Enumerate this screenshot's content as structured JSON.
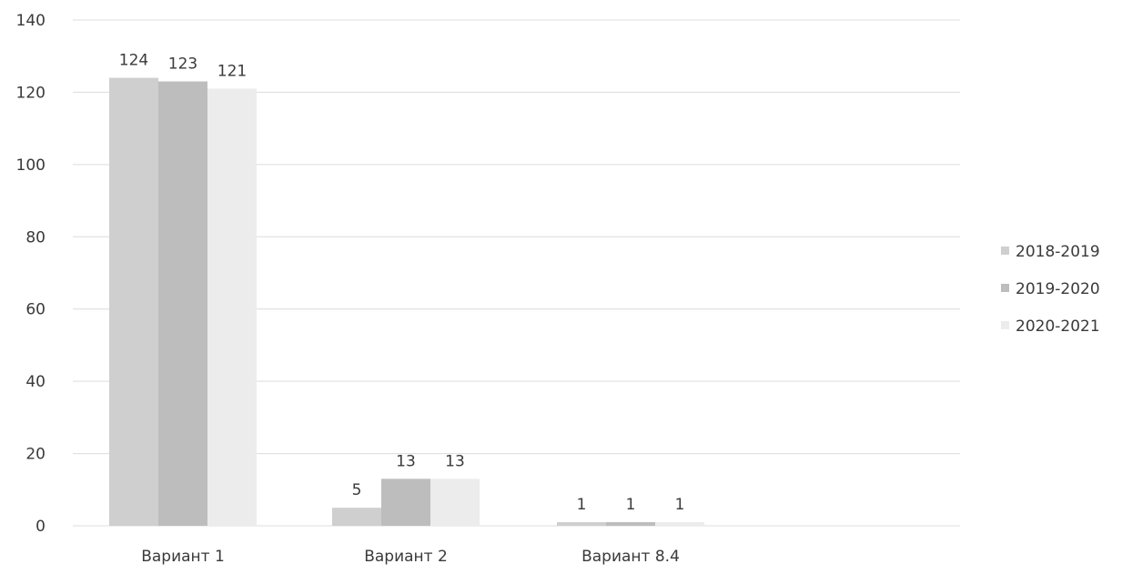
{
  "chart_data": {
    "type": "bar",
    "categories": [
      "Вариант 1",
      "Вариант 2",
      "Вариант 8.4"
    ],
    "series": [
      {
        "name": "2018-2019",
        "values": [
          124,
          5,
          1
        ],
        "color": "#cfcfcf"
      },
      {
        "name": "2019-2020",
        "values": [
          123,
          13,
          1
        ],
        "color": "#bdbdbd"
      },
      {
        "name": "2020-2021",
        "values": [
          121,
          13,
          1
        ],
        "color": "#ececec"
      }
    ],
    "ylim": [
      0,
      140
    ],
    "yticks": [
      0,
      20,
      40,
      60,
      80,
      100,
      120,
      140
    ],
    "grid": true,
    "legend": "right",
    "data_labels": true
  }
}
